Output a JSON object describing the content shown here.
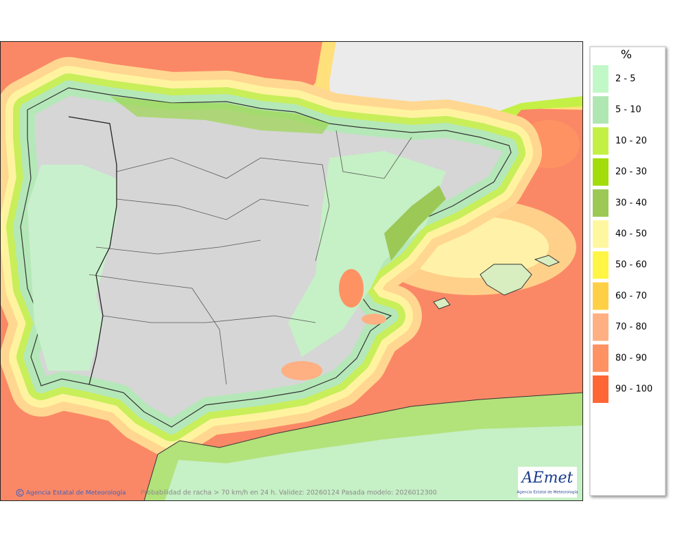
{
  "legend": {
    "title": "%",
    "items": [
      {
        "label": "2 - 5",
        "color": "#c2f7c8"
      },
      {
        "label": "5 - 10",
        "color": "#b0e6b2"
      },
      {
        "label": "10 - 20",
        "color": "#c4f046"
      },
      {
        "label": "20 - 30",
        "color": "#a2dc0a"
      },
      {
        "label": "30 - 40",
        "color": "#9cc855"
      },
      {
        "label": "40 - 50",
        "color": "#fff7a0"
      },
      {
        "label": "50 - 60",
        "color": "#fff545"
      },
      {
        "label": "60 - 70",
        "color": "#ffd045"
      },
      {
        "label": "70 - 80",
        "color": "#ffb083"
      },
      {
        "label": "80 - 90",
        "color": "#ff9263"
      },
      {
        "label": "90 - 100",
        "color": "#ff6635"
      }
    ]
  },
  "footer": {
    "credit": "Agencia Estatal de Meteorología",
    "caption": "Probabilidad de racha > 70 km/h en 24 h. Validez: 20260124 Pasada modelo: 2026012300"
  },
  "logo": {
    "name": "AEmet",
    "subtitle": "Agencia Estatal de Meteorología"
  }
}
